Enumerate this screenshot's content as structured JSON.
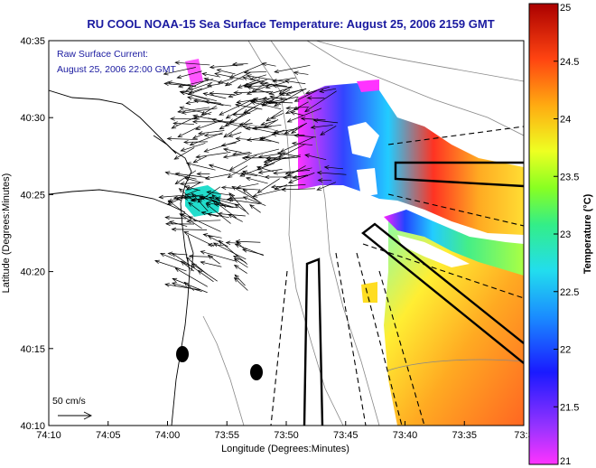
{
  "title": "RU COOL  NOAA-15  Sea Surface Temperature:  August 25, 2006 2159 GMT",
  "current_annotation": {
    "line1": "Raw Surface Current:",
    "line2": "August 25, 2006 22:00 GMT"
  },
  "axes": {
    "xlabel": "Longitude (Degrees:Minutes)",
    "ylabel": "Latitude (Degrees:Minutes)",
    "xticks": [
      "74:10",
      "74:05",
      "74:00",
      "73:55",
      "73:50",
      "73:45",
      "73:40",
      "73:35",
      "73:3"
    ],
    "yticks": [
      "40:35",
      "40:30",
      "40:25",
      "40:20",
      "40:15",
      "40:10"
    ]
  },
  "scale_label": "50 cm/s",
  "colorbar": {
    "label": "Temperature (°C)",
    "ticks": [
      "25",
      "24.5",
      "24",
      "23.5",
      "23",
      "22.5",
      "22",
      "21.5",
      "21"
    ],
    "min": 21,
    "max": 25
  },
  "colors": {
    "title": "#1a1aa0",
    "land": "#ffffff",
    "sst_warm": "#ff6600",
    "sst_cool": "#1464ff"
  }
}
